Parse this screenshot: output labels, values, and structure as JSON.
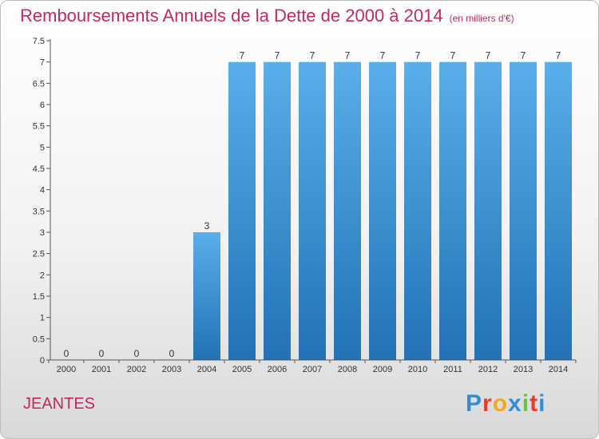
{
  "title": "Remboursements Annuels de la Dette de 2000 à 2014",
  "subtitle": "(en milliers d'€)",
  "commune": "JEANTES",
  "logo": {
    "text": "Proxiti",
    "letters": [
      "P",
      "r",
      "o",
      "x",
      "i",
      "t",
      "i"
    ],
    "colors": [
      "#2f8fd6",
      "#e63a2e",
      "#f2a81d",
      "#2f8fd6",
      "#6cc04a",
      "#e63a2e",
      "#2f8fd6"
    ]
  },
  "chart_data": {
    "type": "bar",
    "categories": [
      "2000",
      "2001",
      "2002",
      "2003",
      "2004",
      "2005",
      "2006",
      "2007",
      "2008",
      "2009",
      "2010",
      "2011",
      "2012",
      "2013",
      "2014"
    ],
    "values": [
      0,
      0,
      0,
      0,
      3,
      7,
      7,
      7,
      7,
      7,
      7,
      7,
      7,
      7,
      7
    ],
    "data_labels": [
      "0",
      "0",
      "0",
      "0",
      "3",
      "7",
      "7",
      "7",
      "7",
      "7",
      "7",
      "7",
      "7",
      "7",
      "7"
    ],
    "title": "Remboursements Annuels de la Dette de 2000 à 2014",
    "subtitle": "(en milliers d'€)",
    "xlabel": "",
    "ylabel": "",
    "ylim": [
      0,
      7.5
    ],
    "y_ticks": [
      {
        "value": 0,
        "label": "0"
      },
      {
        "value": 0.5,
        "label": "0.5"
      },
      {
        "value": 1,
        "label": "1"
      },
      {
        "value": 1.5,
        "label": "1.5"
      },
      {
        "value": 2,
        "label": "2"
      },
      {
        "value": 2.5,
        "label": "2.5"
      },
      {
        "value": 3,
        "label": "3"
      },
      {
        "value": 3.5,
        "label": "3.5"
      },
      {
        "value": 4,
        "label": "4"
      },
      {
        "value": 4.5,
        "label": "4.5"
      },
      {
        "value": 5,
        "label": "5"
      },
      {
        "value": 5.5,
        "label": "5.5"
      },
      {
        "value": 6,
        "label": "6"
      },
      {
        "value": 6.5,
        "label": "6.5"
      },
      {
        "value": 7,
        "label": "7"
      },
      {
        "value": 7.5,
        "label": "7.5"
      }
    ],
    "grid": false,
    "bar_color": "#4a9fe0"
  }
}
